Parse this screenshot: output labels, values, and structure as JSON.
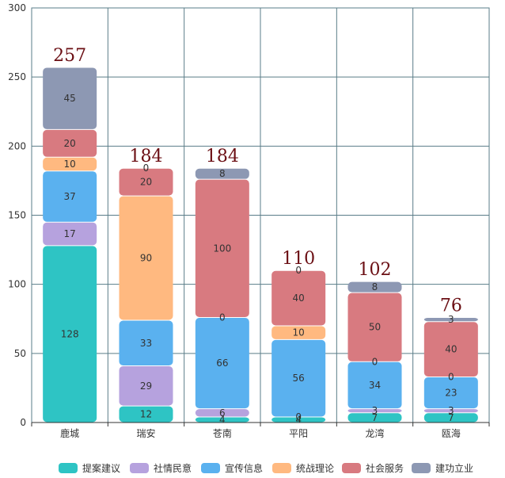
{
  "chart_data": {
    "type": "bar",
    "stacked": true,
    "categories": [
      "鹿城",
      "瑞安",
      "苍南",
      "平阳",
      "龙湾",
      "瓯海"
    ],
    "ylim": [
      0,
      300
    ],
    "yticks": [
      0,
      50,
      100,
      150,
      200,
      250,
      300
    ],
    "series": [
      {
        "name": "提案建议",
        "color": "#2ec4c4",
        "values": [
          128,
          12,
          4,
          4,
          7,
          7
        ]
      },
      {
        "name": "社情民意",
        "color": "#b6a2de",
        "values": [
          17,
          29,
          6,
          0,
          3,
          3
        ]
      },
      {
        "name": "宣传信息",
        "color": "#5ab1ef",
        "values": [
          37,
          33,
          66,
          56,
          34,
          23
        ]
      },
      {
        "name": "统战理论",
        "color": "#ffb980",
        "values": [
          10,
          90,
          0,
          10,
          0,
          0
        ]
      },
      {
        "name": "社会服务",
        "color": "#d87a80",
        "values": [
          20,
          20,
          100,
          40,
          50,
          40
        ]
      },
      {
        "name": "建功立业",
        "color": "#8d98b3",
        "values": [
          45,
          0,
          8,
          0,
          8,
          3
        ]
      }
    ],
    "totals": [
      257,
      184,
      184,
      110,
      102,
      76
    ],
    "legend_position": "bottom",
    "grid": true
  }
}
